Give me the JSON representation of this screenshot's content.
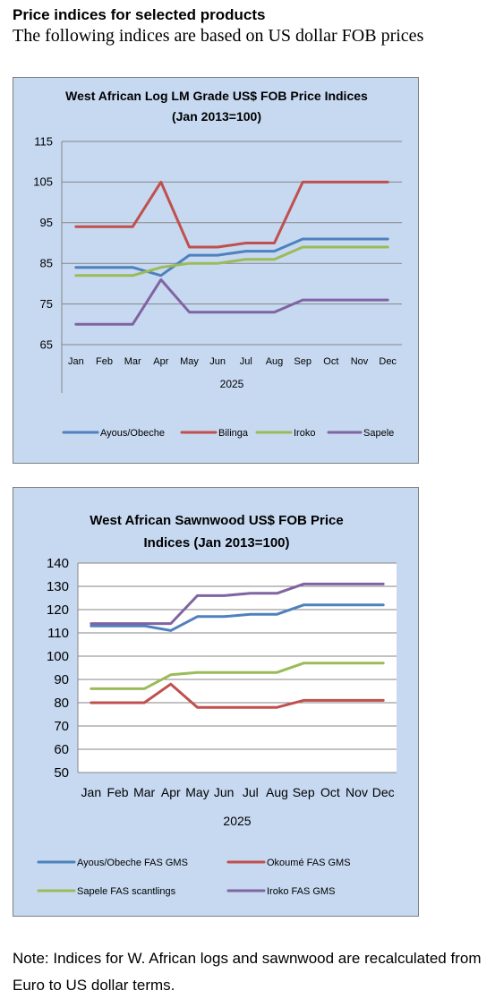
{
  "heading": "Price indices for selected products",
  "subheading": "The following indices are based on US dollar FOB prices",
  "note": "Note: Indices for W. African logs and sawnwood are recalculated from Euro to US dollar terms.",
  "chart_data": [
    {
      "type": "line",
      "title": [
        "West African Log LM Grade US$ FOB Price Indices",
        "(Jan 2013=100)"
      ],
      "xlabel": "2025",
      "ylabel": "",
      "categories": [
        "Jan",
        "Feb",
        "Mar",
        "Apr",
        "May",
        "Jun",
        "Jul",
        "Aug",
        "Sep",
        "Oct",
        "Nov",
        "Dec"
      ],
      "ylim": [
        65,
        115
      ],
      "yticks": [
        65,
        75,
        85,
        95,
        105,
        115
      ],
      "grid": true,
      "legend": "bottom",
      "series": [
        {
          "name": "Ayous/Obeche",
          "color": "#4f81bd",
          "values": [
            84,
            84,
            84,
            82,
            87,
            87,
            88,
            88,
            91,
            91,
            91,
            91
          ]
        },
        {
          "name": "Bilinga",
          "color": "#c0504d",
          "values": [
            94,
            94,
            94,
            105,
            89,
            89,
            90,
            90,
            105,
            105,
            105,
            105
          ]
        },
        {
          "name": "Iroko",
          "color": "#9bbb59",
          "values": [
            82,
            82,
            82,
            84,
            85,
            85,
            86,
            86,
            89,
            89,
            89,
            89
          ]
        },
        {
          "name": "Sapele",
          "color": "#8064a2",
          "values": [
            70,
            70,
            70,
            81,
            73,
            73,
            73,
            73,
            76,
            76,
            76,
            76
          ]
        }
      ]
    },
    {
      "type": "line",
      "title": [
        "West African Sawnwood US$ FOB Price",
        "Indices (Jan 2013=100)"
      ],
      "xlabel": "2025",
      "ylabel": "",
      "categories": [
        "Jan",
        "Feb",
        "Mar",
        "Apr",
        "May",
        "Jun",
        "Jul",
        "Aug",
        "Sep",
        "Oct",
        "Nov",
        "Dec"
      ],
      "ylim": [
        50,
        140
      ],
      "yticks": [
        50,
        60,
        70,
        80,
        90,
        100,
        110,
        120,
        130,
        140
      ],
      "grid": true,
      "legend": "bottom",
      "series": [
        {
          "name": "Ayous/Obeche  FAS GMS",
          "color": "#4f81bd",
          "values": [
            113,
            113,
            113,
            111,
            117,
            117,
            118,
            118,
            122,
            122,
            122,
            122
          ]
        },
        {
          "name": "Okoumé  FAS GMS",
          "color": "#c0504d",
          "values": [
            80,
            80,
            80,
            88,
            78,
            78,
            78,
            78,
            81,
            81,
            81,
            81
          ]
        },
        {
          "name": "Sapele FAS scantlings",
          "color": "#9bbb59",
          "values": [
            86,
            86,
            86,
            92,
            93,
            93,
            93,
            93,
            97,
            97,
            97,
            97
          ]
        },
        {
          "name": "Iroko FAS GMS",
          "color": "#8064a2",
          "values": [
            114,
            114,
            114,
            114,
            126,
            126,
            127,
            127,
            131,
            131,
            131,
            131
          ]
        }
      ]
    }
  ]
}
